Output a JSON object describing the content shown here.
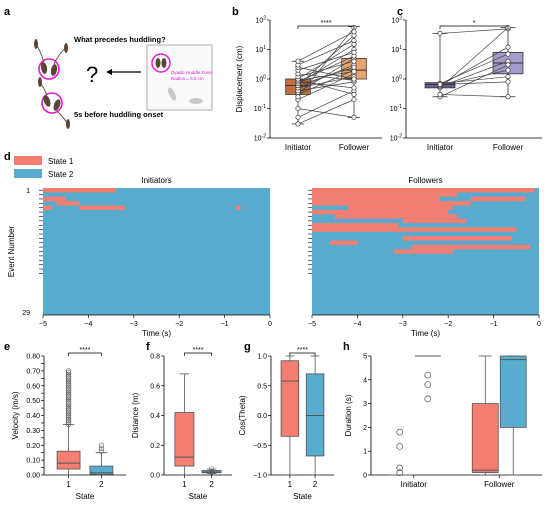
{
  "colors": {
    "state1": "#f47e72",
    "state2": "#5aaccf",
    "initiator_box": "#c56e3c",
    "follower_box": "#e8a36e",
    "c_initiator_box": "#6f5a9a",
    "c_follower_box": "#a69bc9",
    "scheme_magenta": "#e81ad6"
  },
  "panels": {
    "a": "a",
    "b": "b",
    "c": "c",
    "d": "d",
    "e": "e",
    "f": "f",
    "g": "g",
    "h": "h"
  },
  "schematic": {
    "question": "What precedes huddling?",
    "qmark": "?",
    "caption": "5s before huddling onset",
    "zone_line1": "Dyadic Huddle Zone",
    "zone_line2": "Radius = 3.5 cm"
  },
  "chart_data": [
    {
      "id": "b",
      "type": "box",
      "ylabel": "Displacement (cm)",
      "yscale": "log",
      "ylim": [
        0.01,
        100
      ],
      "yticks": [
        "10^-2",
        "10^-1",
        "10^0",
        "10^1",
        "10^2"
      ],
      "categories": [
        "Initiator",
        "Follower"
      ],
      "boxes": [
        {
          "q1": 0.3,
          "median": 0.6,
          "q3": 1.0,
          "whislo": 0.03,
          "whishi": 4
        },
        {
          "q1": 1.0,
          "median": 2.0,
          "q3": 5.0,
          "whislo": 0.05,
          "whishi": 60
        }
      ],
      "pairs": [
        [
          0.03,
          0.2
        ],
        [
          0.05,
          0.4
        ],
        [
          0.1,
          0.05
        ],
        [
          0.2,
          1.5
        ],
        [
          0.3,
          2.0
        ],
        [
          0.35,
          5.0
        ],
        [
          0.4,
          0.8
        ],
        [
          0.5,
          3.0
        ],
        [
          0.5,
          1.2
        ],
        [
          0.6,
          30
        ],
        [
          0.6,
          2.5
        ],
        [
          0.7,
          10
        ],
        [
          0.8,
          0.5
        ],
        [
          0.8,
          6.0
        ],
        [
          0.9,
          1.8
        ],
        [
          1.0,
          15
        ],
        [
          1.0,
          0.3
        ],
        [
          1.2,
          4.0
        ],
        [
          1.5,
          0.9
        ],
        [
          2.0,
          8.0
        ],
        [
          2.5,
          1.0
        ],
        [
          3.0,
          20
        ],
        [
          4.0,
          40
        ],
        [
          0.25,
          55
        ]
      ],
      "significance": "****"
    },
    {
      "id": "c",
      "type": "box",
      "ylabel": "",
      "yscale": "log",
      "ylim": [
        0.01,
        100
      ],
      "yticks": [
        "10^-2",
        "10^-1",
        "10^0",
        "10^1",
        "10^2"
      ],
      "categories": [
        "Initiator",
        "Follower"
      ],
      "boxes": [
        {
          "q1": 0.5,
          "median": 0.65,
          "q3": 0.75,
          "whislo": 0.25,
          "whishi": 35
        },
        {
          "q1": 1.5,
          "median": 3.5,
          "q3": 8.0,
          "whislo": 0.25,
          "whishi": 55
        }
      ],
      "pairs": [
        [
          35,
          50
        ],
        [
          0.5,
          55
        ],
        [
          0.6,
          12
        ],
        [
          0.7,
          7
        ],
        [
          0.55,
          4
        ],
        [
          0.25,
          3
        ],
        [
          0.6,
          2
        ],
        [
          0.3,
          0.25
        ],
        [
          0.7,
          1.2
        ],
        [
          0.65,
          0.8
        ]
      ],
      "significance": "*"
    },
    {
      "id": "d",
      "type": "heatmap",
      "ylabel": "Event Number",
      "xlabel": "Time (s)",
      "xlim": [
        -5,
        0
      ],
      "xticks": [
        "-5",
        "-4",
        "-3",
        "-2",
        "-1",
        "0"
      ],
      "events": 29,
      "ytick_first": "1",
      "ytick_last": "29",
      "legend": [
        "State 1",
        "State 2"
      ],
      "panels": [
        {
          "title": "Initiators",
          "segments": [
            [
              1,
              -5,
              -3.4
            ],
            [
              3,
              -5,
              -4.5
            ],
            [
              4,
              -4.7,
              -4.2
            ],
            [
              5,
              -4.2,
              -3.2
            ],
            [
              5,
              -5,
              -4.8
            ],
            [
              5,
              -3.3,
              -3.2
            ],
            [
              5,
              -0.75,
              -0.65
            ]
          ]
        },
        {
          "title": "Followers",
          "segments": [
            [
              1,
              -5,
              -0.1
            ],
            [
              2,
              -5,
              -1.8
            ],
            [
              3,
              -5,
              -2.2
            ],
            [
              3,
              -1.5,
              -0.3
            ],
            [
              4,
              -5,
              -1.5
            ],
            [
              5,
              -4.2,
              -1.9
            ],
            [
              6,
              -5,
              -2.0
            ],
            [
              7,
              -4.5,
              -1.8
            ],
            [
              8,
              -3.0,
              -1.6
            ],
            [
              9,
              -5,
              -3.1
            ],
            [
              10,
              -5,
              -0.5
            ],
            [
              12,
              -3.0,
              -0.6
            ],
            [
              13,
              -4.6,
              -4.0
            ],
            [
              14,
              -2.8,
              -0.2
            ],
            [
              15,
              -3.2,
              -1.9
            ]
          ]
        }
      ]
    },
    {
      "id": "e",
      "type": "box",
      "ylabel": "Velocity (m/s)",
      "xlabel": "State",
      "ylim": [
        0,
        0.8
      ],
      "yticks": [
        "0.00",
        "0.05",
        "0.10",
        "0.15",
        "0.20",
        "0.25",
        "0.30",
        "0.35",
        "0.40",
        "0.45",
        "0.50",
        "0.55",
        "0.60",
        "0.65",
        "0.70",
        "0.75",
        "0.80"
      ],
      "categories": [
        "1",
        "2"
      ],
      "boxes": [
        {
          "q1": 0.04,
          "median": 0.08,
          "q3": 0.16,
          "whislo": 0.0,
          "whishi": 0.34
        },
        {
          "q1": 0.005,
          "median": 0.015,
          "q3": 0.06,
          "whislo": 0.0,
          "whishi": 0.15
        }
      ],
      "significance": "****"
    },
    {
      "id": "f",
      "type": "box",
      "ylabel": "Distance (m)",
      "xlabel": "State",
      "ylim": [
        0,
        0.8
      ],
      "yticks": [
        "0.0",
        "0.2",
        "0.4",
        "0.6",
        "0.8"
      ],
      "categories": [
        "1",
        "2"
      ],
      "boxes": [
        {
          "q1": 0.06,
          "median": 0.12,
          "q3": 0.42,
          "whislo": 0.0,
          "whishi": 0.68
        },
        {
          "q1": 0.015,
          "median": 0.02,
          "q3": 0.03,
          "whislo": 0.01,
          "whishi": 0.04
        }
      ],
      "significance": "****"
    },
    {
      "id": "g",
      "type": "box",
      "ylabel": "Cos(Theta)",
      "xlabel": "State",
      "ylim": [
        -1,
        1
      ],
      "yticks": [
        "-1.0",
        "-0.5",
        "0.0",
        "0.5",
        "1.0"
      ],
      "categories": [
        "1",
        "2"
      ],
      "boxes": [
        {
          "q1": -0.35,
          "median": 0.58,
          "q3": 0.92,
          "whislo": -1.0,
          "whishi": 1.0
        },
        {
          "q1": -0.68,
          "median": 0.0,
          "q3": 0.7,
          "whislo": -1.0,
          "whishi": 1.0
        }
      ],
      "significance": "****"
    },
    {
      "id": "h",
      "type": "box",
      "ylabel": "Duration (s)",
      "xlim_labels": [
        "Initiator",
        "Follower"
      ],
      "ylim": [
        0,
        5
      ],
      "yticks": [
        "0",
        "1",
        "2",
        "3",
        "4",
        "5"
      ],
      "boxes": [
        {
          "group": "Initiator",
          "state": "State 1",
          "q1": 0,
          "median": 0,
          "q3": 0,
          "whislo": 0,
          "whishi": 0,
          "fliers": [
            1.8,
            1.2,
            0.3,
            0.1
          ]
        },
        {
          "group": "Initiator",
          "state": "State 2",
          "q1": 5,
          "median": 5,
          "q3": 5,
          "whislo": 5,
          "whishi": 5,
          "fliers": [
            4.2,
            3.8,
            3.2
          ]
        },
        {
          "group": "Follower",
          "state": "State 1",
          "q1": 0.1,
          "median": 0.2,
          "q3": 3.0,
          "whislo": 0,
          "whishi": 5
        },
        {
          "group": "Follower",
          "state": "State 2",
          "q1": 2.0,
          "median": 4.85,
          "q3": 5.0,
          "whislo": 0,
          "whishi": 5
        }
      ]
    }
  ]
}
